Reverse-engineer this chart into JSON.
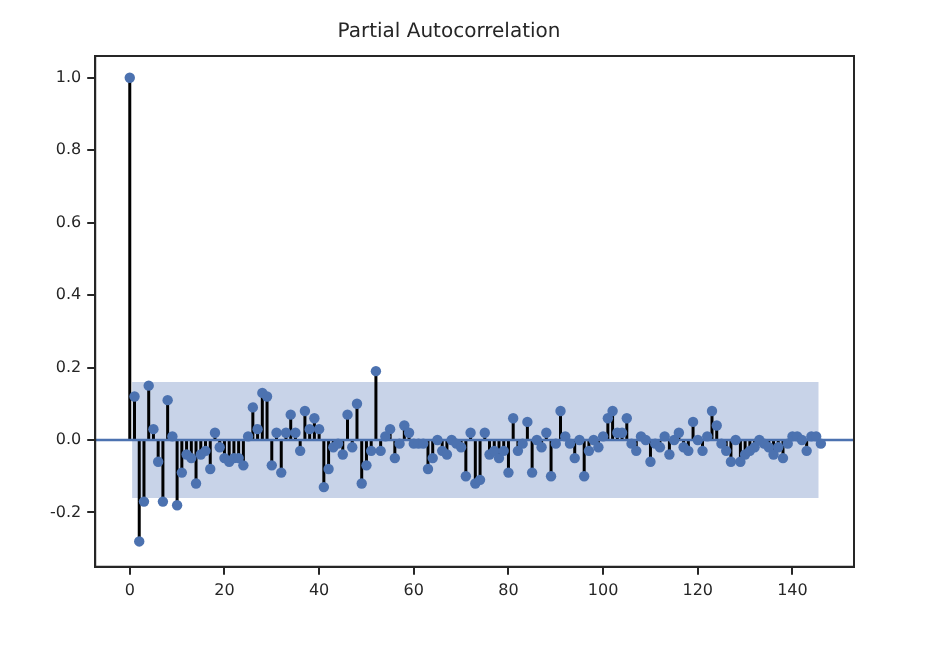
{
  "chart_data": {
    "type": "lollipop",
    "title": "Partial Autocorrelation",
    "x": [
      0,
      1,
      2,
      3,
      4,
      5,
      6,
      7,
      8,
      9,
      10,
      11,
      12,
      13,
      14,
      15,
      16,
      17,
      18,
      19,
      20,
      21,
      22,
      23,
      24,
      25,
      26,
      27,
      28,
      29,
      30,
      31,
      32,
      33,
      34,
      35,
      36,
      37,
      38,
      39,
      40,
      41,
      42,
      43,
      44,
      45,
      46,
      47,
      48,
      49,
      50,
      51,
      52,
      53,
      54,
      55,
      56,
      57,
      58,
      59,
      60,
      61,
      62,
      63,
      64,
      65,
      66,
      67,
      68,
      69,
      70,
      71,
      72,
      73,
      74,
      75,
      76,
      77,
      78,
      79,
      80,
      81,
      82,
      83,
      84,
      85,
      86,
      87,
      88,
      89,
      90,
      91,
      92,
      93,
      94,
      95,
      96,
      97,
      98,
      99,
      100,
      101,
      102,
      103,
      104,
      105,
      106,
      107,
      108,
      109,
      110,
      111,
      112,
      113,
      114,
      115,
      116,
      117,
      118,
      119,
      120,
      121,
      122,
      123,
      124,
      125,
      126,
      127,
      128,
      129,
      130,
      131,
      132,
      133,
      134,
      135,
      136,
      137,
      138,
      139,
      140,
      141,
      142,
      143,
      144,
      145,
      146
    ],
    "series": [
      {
        "color": "#4c72b0",
        "values": [
          1.0,
          0.12,
          -0.28,
          -0.17,
          0.15,
          0.03,
          -0.06,
          -0.17,
          0.11,
          0.01,
          -0.18,
          -0.09,
          -0.04,
          -0.05,
          -0.12,
          -0.04,
          -0.03,
          -0.08,
          0.02,
          -0.02,
          -0.05,
          -0.06,
          -0.05,
          -0.05,
          -0.07,
          0.01,
          0.09,
          0.03,
          0.13,
          0.12,
          -0.07,
          0.02,
          -0.09,
          0.02,
          0.07,
          0.02,
          -0.03,
          0.08,
          0.03,
          0.06,
          0.03,
          -0.13,
          -0.08,
          -0.02,
          -0.01,
          -0.04,
          0.07,
          -0.02,
          0.1,
          -0.12,
          -0.07,
          -0.03,
          0.19,
          -0.03,
          0.01,
          0.03,
          -0.05,
          -0.01,
          0.04,
          0.02,
          -0.01,
          -0.01,
          -0.01,
          -0.08,
          -0.05,
          0.0,
          -0.03,
          -0.04,
          0.0,
          -0.01,
          -0.02,
          -0.1,
          0.02,
          -0.12,
          -0.11,
          0.02,
          -0.04,
          -0.03,
          -0.05,
          -0.03,
          -0.09,
          0.06,
          -0.03,
          -0.01,
          0.05,
          -0.09,
          0.0,
          -0.02,
          0.02,
          -0.1,
          -0.01,
          0.08,
          0.01,
          -0.01,
          -0.05,
          0.0,
          -0.1,
          -0.03,
          0.0,
          -0.02,
          0.01,
          0.06,
          0.08,
          0.02,
          0.02,
          0.06,
          -0.01,
          -0.03,
          0.01,
          0.0,
          -0.06,
          -0.01,
          -0.02,
          0.01,
          -0.04,
          0.0,
          0.02,
          -0.02,
          -0.03,
          0.05,
          0.0,
          -0.03,
          0.01,
          0.08,
          0.04,
          -0.01,
          -0.03,
          -0.06,
          0.0,
          -0.06,
          -0.04,
          -0.03,
          -0.02,
          0.0,
          -0.01,
          -0.02,
          -0.04,
          -0.02,
          -0.05,
          -0.01,
          0.01,
          0.01,
          0.0,
          -0.03,
          0.01,
          0.01,
          -0.01
        ]
      }
    ],
    "xlim": [
      -7.3,
      153
    ],
    "xticks": [
      0,
      20,
      40,
      60,
      80,
      100,
      120,
      140
    ],
    "ylim": [
      -0.35,
      1.06
    ],
    "yticks": [
      -0.2,
      {
        "value": 0,
        "label": "0.0"
      },
      0.2,
      0.4,
      0.6,
      0.8,
      {
        "value": 1,
        "label": "1.0"
      }
    ],
    "bands": [
      {
        "axis": "y",
        "from": -0.16,
        "to": 0.16,
        "color": "#c8d3e8"
      }
    ],
    "ref_lines": [
      {
        "axis": "y",
        "value": 0,
        "color": "#4c72b0"
      }
    ],
    "grid": false,
    "legend": false,
    "marker": "circle"
  }
}
